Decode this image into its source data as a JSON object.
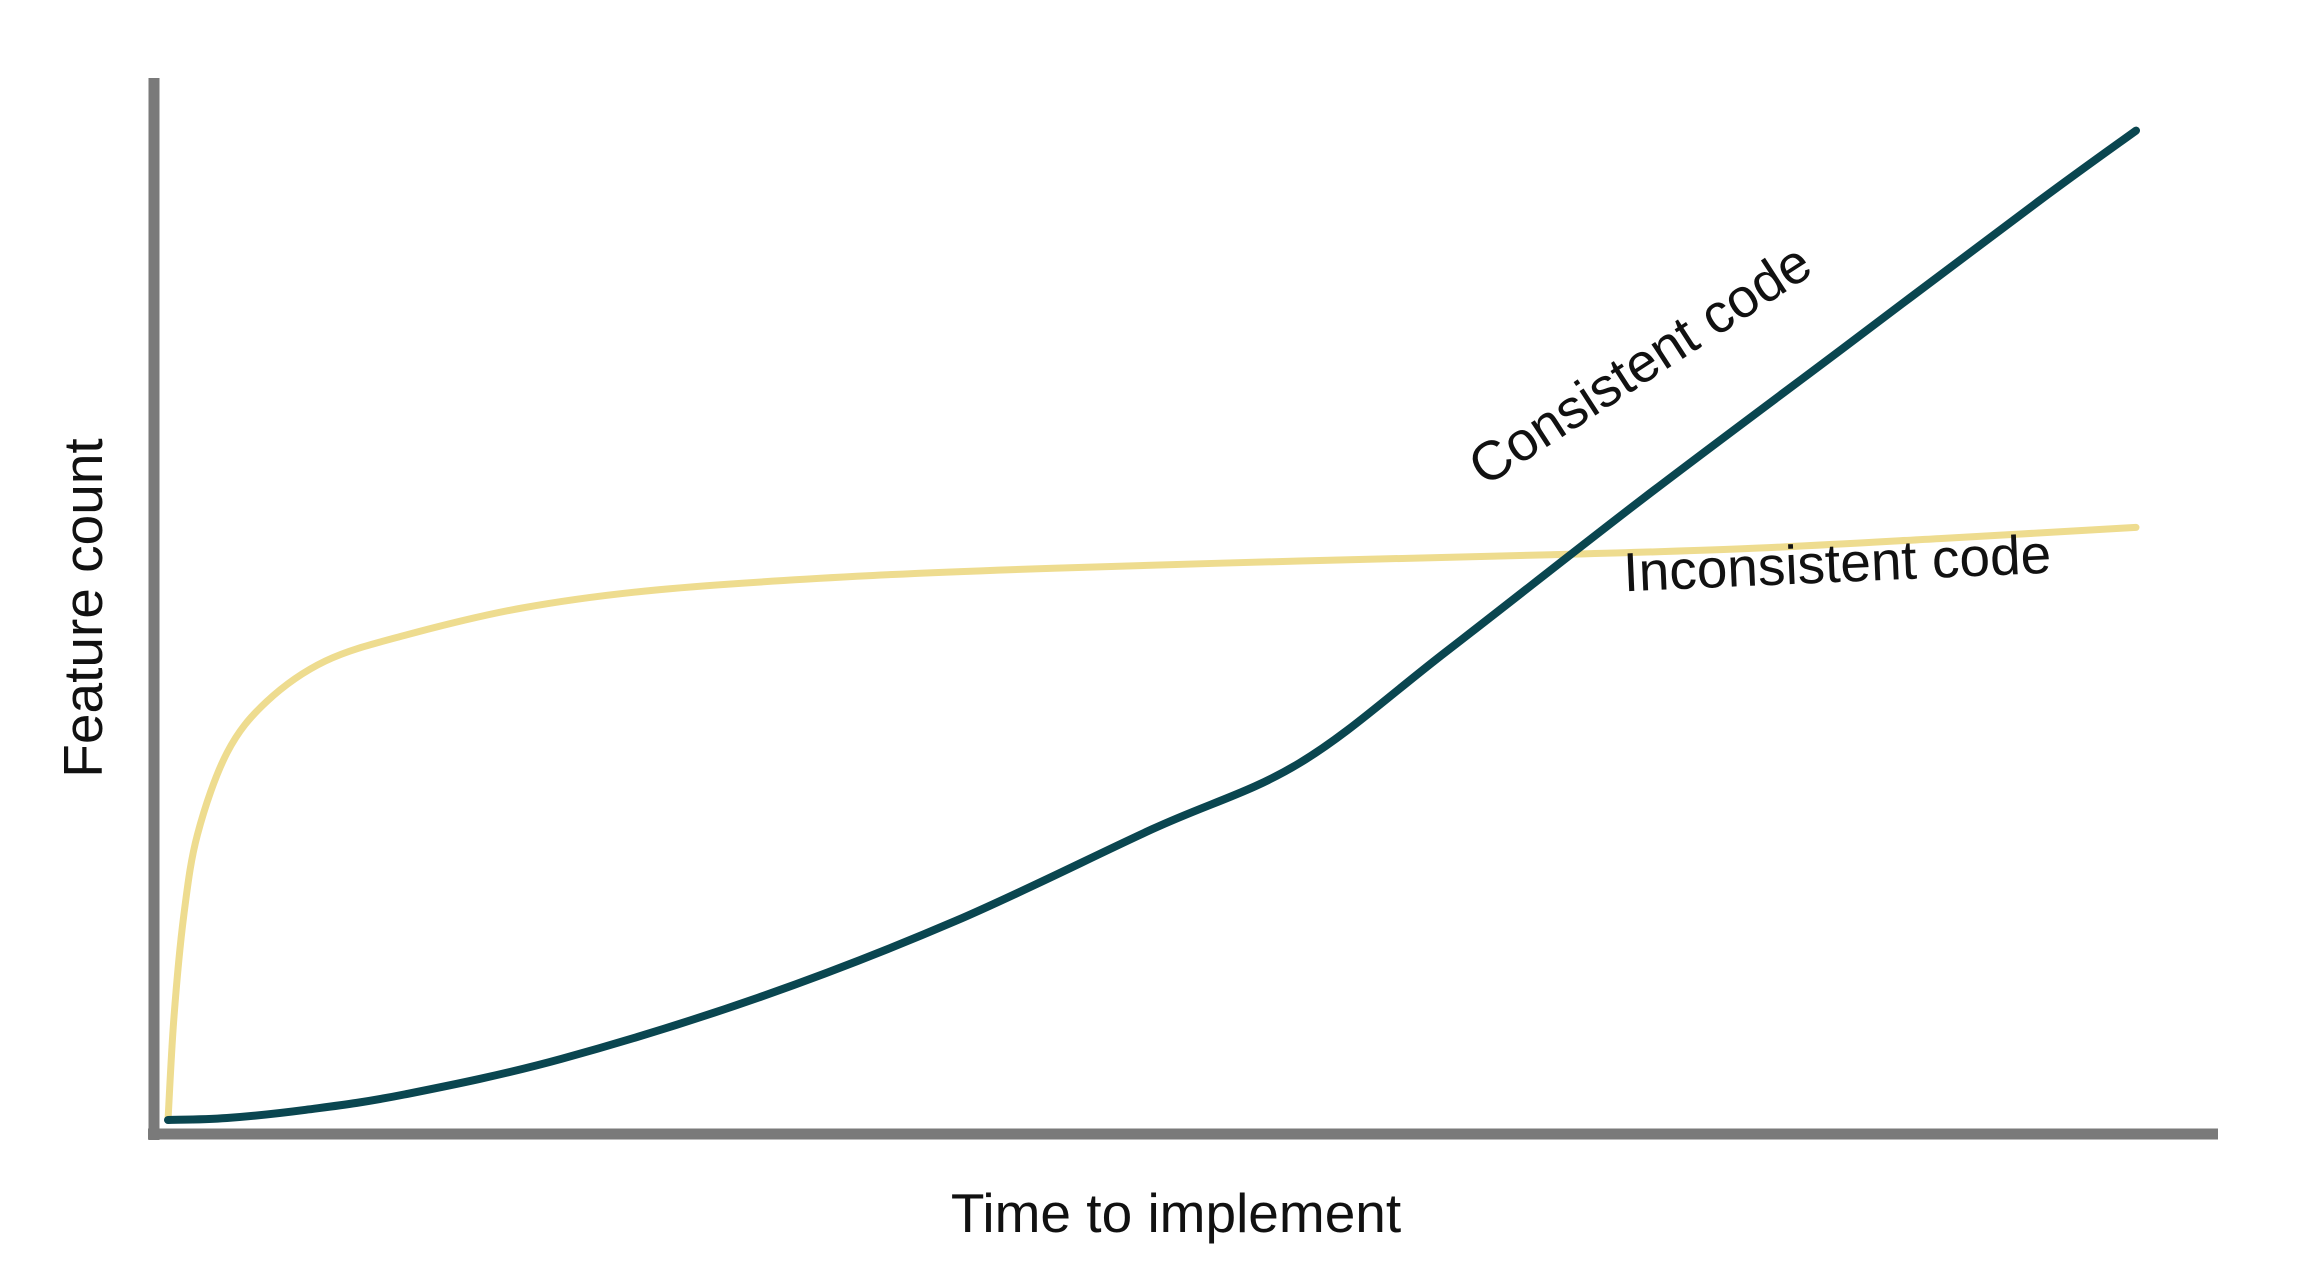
{
  "chart_data": {
    "type": "line",
    "title": "",
    "xlabel": "Time to implement",
    "ylabel": "Feature count",
    "xlim": [
      0,
      100
    ],
    "ylim": [
      0,
      100
    ],
    "grid": false,
    "legend": "none",
    "axis_color": "#7a7a7a",
    "series": [
      {
        "name": "Consistent code",
        "color": "#0a4650",
        "x": [
          0,
          3,
          7,
          12,
          20,
          30,
          40,
          50,
          57.5,
          65,
          75,
          85,
          95,
          100
        ],
        "y": [
          0,
          0.2,
          1.0,
          2.5,
          6.0,
          12.0,
          19.5,
          28.5,
          35.0,
          46.0,
          61.0,
          75.5,
          90.0,
          97.0
        ]
      },
      {
        "name": "Inconsistent code",
        "color": "#eedc8f",
        "x": [
          0,
          0.3,
          0.8,
          1.5,
          3,
          5,
          8,
          12,
          18,
          25,
          35,
          45,
          57.5,
          70,
          80,
          90,
          100
        ],
        "y": [
          0,
          10,
          20,
          28,
          36,
          41,
          45,
          47.5,
          50.2,
          52.0,
          53.3,
          54.1,
          54.8,
          55.4,
          56.0,
          57.0,
          58.1
        ]
      }
    ]
  }
}
